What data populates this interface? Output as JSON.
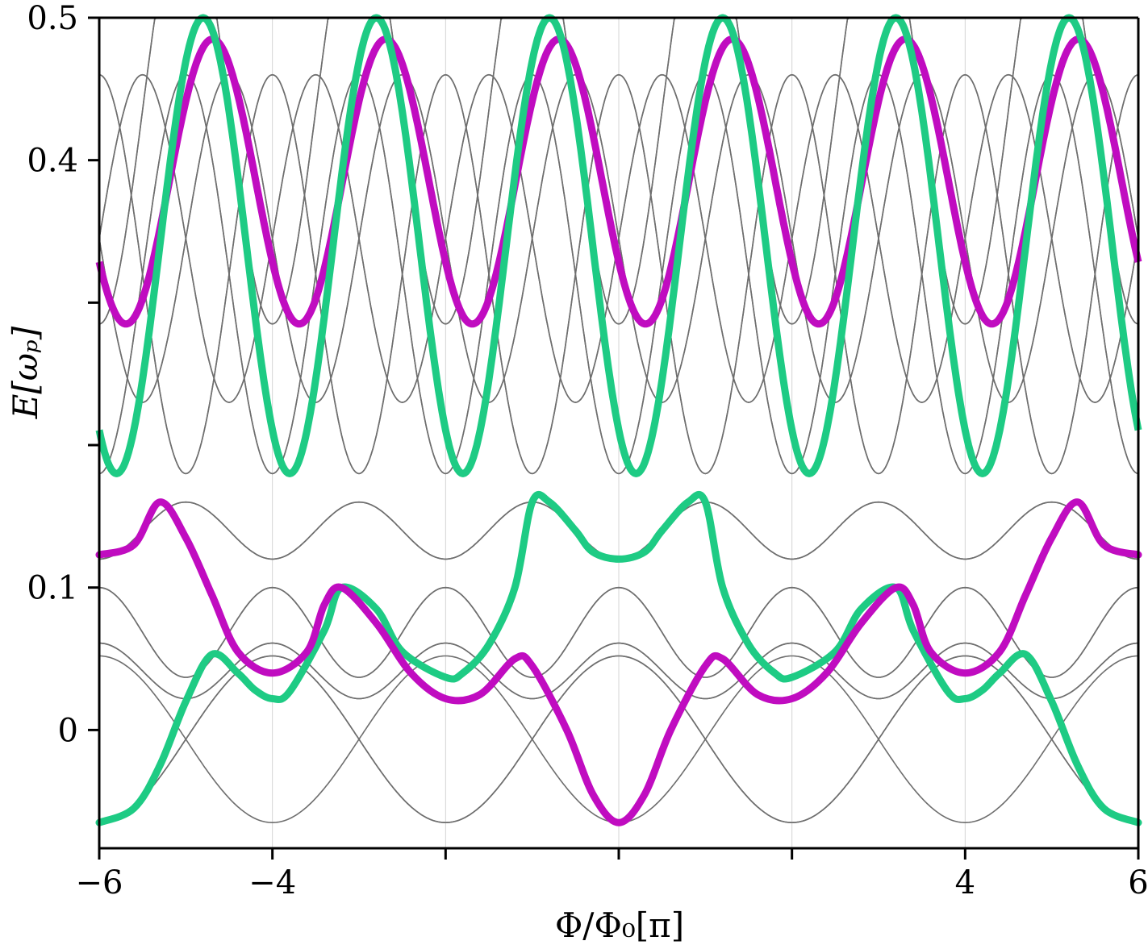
{
  "chart_data": {
    "type": "line",
    "title": "",
    "xlabel": "Φ/Φ₀[π]",
    "ylabel": "E[ωₚ]",
    "xlim": [
      -6,
      6
    ],
    "ylim": [
      -0.083,
      0.5
    ],
    "grid": "vertical-only",
    "legend": "none",
    "x_ticks": [
      -6,
      -4,
      -2,
      0,
      2,
      4,
      6
    ],
    "x_tick_labels": [
      "−6",
      "−4",
      "",
      "",
      "",
      "4",
      "6"
    ],
    "y_ticks": [
      0,
      0.1,
      0.2,
      0.3,
      0.4,
      0.5
    ],
    "y_tick_labels": [
      "0",
      "0.1",
      "",
      "",
      "0.4",
      "0.5"
    ],
    "colors": {
      "green": "#1ecb84",
      "magenta": "#c00cc0",
      "gray": "#6e6e6e",
      "grid": "#d4d4d4",
      "axis": "#000000"
    },
    "series": [
      {
        "color": "green",
        "style": "thick",
        "x": [
          -6,
          -5.6,
          -5.3,
          -5.0,
          -4.7,
          -4.4,
          -4.2,
          -4.0,
          -3.8,
          -3.4,
          -3.2,
          -2.8,
          -2.5,
          -2.0,
          -1.8,
          -1.5,
          -1.2,
          -1.0,
          -0.8,
          -0.5,
          -0.3,
          0,
          0.3,
          0.5,
          0.8,
          1.0,
          1.2,
          1.5,
          1.8,
          2.0,
          2.5,
          2.8,
          3.2,
          3.4,
          3.8,
          4.0,
          4.2,
          4.4,
          4.7,
          5.0,
          5.3,
          5.6,
          6.0
        ],
        "y": [
          -0.065,
          -0.055,
          -0.025,
          0.02,
          0.053,
          0.04,
          0.028,
          0.022,
          0.027,
          0.07,
          0.1,
          0.085,
          0.055,
          0.037,
          0.04,
          0.06,
          0.1,
          0.16,
          0.16,
          0.14,
          0.125,
          0.12,
          0.125,
          0.14,
          0.16,
          0.16,
          0.1,
          0.06,
          0.04,
          0.037,
          0.055,
          0.085,
          0.1,
          0.07,
          0.027,
          0.022,
          0.028,
          0.04,
          0.053,
          0.02,
          -0.025,
          -0.055,
          -0.065
        ]
      },
      {
        "color": "magenta",
        "style": "thick",
        "x": [
          -6,
          -5.6,
          -5.3,
          -5.0,
          -4.7,
          -4.4,
          -4.0,
          -3.6,
          -3.4,
          -3.2,
          -2.8,
          -2.4,
          -2.0,
          -1.6,
          -1.2,
          -1.0,
          -0.6,
          -0.3,
          0,
          0.3,
          0.6,
          1.0,
          1.2,
          1.6,
          2.0,
          2.4,
          2.8,
          3.2,
          3.4,
          3.6,
          4.0,
          4.4,
          4.7,
          5.0,
          5.3,
          5.6,
          6.0
        ],
        "y": [
          0.123,
          0.13,
          0.16,
          0.135,
          0.095,
          0.055,
          0.04,
          0.055,
          0.088,
          0.1,
          0.075,
          0.04,
          0.022,
          0.025,
          0.05,
          0.045,
          0.0,
          -0.045,
          -0.065,
          -0.045,
          0.0,
          0.045,
          0.05,
          0.025,
          0.022,
          0.04,
          0.075,
          0.1,
          0.088,
          0.055,
          0.04,
          0.055,
          0.095,
          0.135,
          0.16,
          0.13,
          0.123
        ]
      }
    ]
  }
}
